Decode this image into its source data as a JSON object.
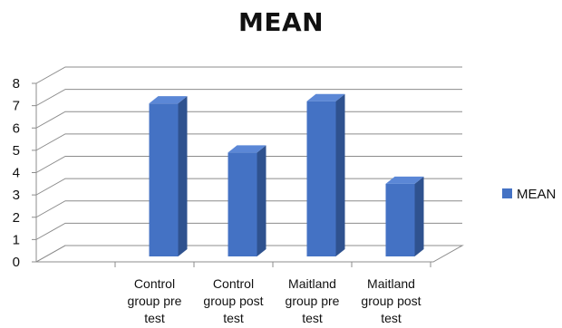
{
  "chart_data": {
    "type": "bar",
    "title": "MEAN",
    "categories": [
      [
        "Control",
        "group pre",
        "test"
      ],
      [
        "Control",
        "group post",
        "test"
      ],
      [
        "Maitland",
        "group pre",
        "test"
      ],
      [
        "Maitland",
        "group post",
        "test"
      ]
    ],
    "series": [
      {
        "name": "MEAN",
        "values": [
          7.1,
          4.9,
          7.2,
          3.5
        ],
        "color": "#4472C4"
      }
    ],
    "y_ticks": [
      "0",
      "1",
      "2",
      "3",
      "4",
      "5",
      "6",
      "7",
      "8"
    ],
    "ylim": [
      0,
      8
    ],
    "grid": true,
    "legend": "right",
    "style": "3d-column"
  }
}
